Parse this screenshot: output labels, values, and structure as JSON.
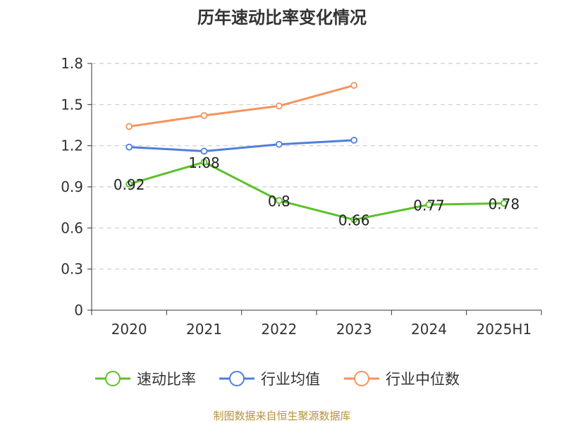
{
  "chart_data": {
    "type": "line",
    "title": "历年速动比率变化情况",
    "xlabel": "",
    "ylabel": "",
    "categories": [
      "2020",
      "2021",
      "2022",
      "2023",
      "2024",
      "2025H1"
    ],
    "ylim": [
      0,
      1.8
    ],
    "yticks": [
      "0",
      "0.3",
      "0.6",
      "0.9",
      "1.2",
      "1.5",
      "1.8"
    ],
    "grid": true,
    "legend_position": "bottom",
    "series": [
      {
        "name": "速动比率",
        "color": "#5cc02a",
        "values": [
          0.92,
          1.08,
          0.8,
          0.66,
          0.77,
          0.78
        ],
        "labels": [
          "0.92",
          "1.08",
          "0.8",
          "0.66",
          "0.77",
          "0.78"
        ]
      },
      {
        "name": "行业均值",
        "color": "#4f7fd9",
        "values": [
          1.19,
          1.16,
          1.21,
          1.24,
          null,
          null
        ]
      },
      {
        "name": "行业中位数",
        "color": "#f5935e",
        "values": [
          1.34,
          1.42,
          1.49,
          1.64,
          null,
          null
        ]
      }
    ]
  },
  "source_text": "制图数据来自恒生聚源数据库"
}
